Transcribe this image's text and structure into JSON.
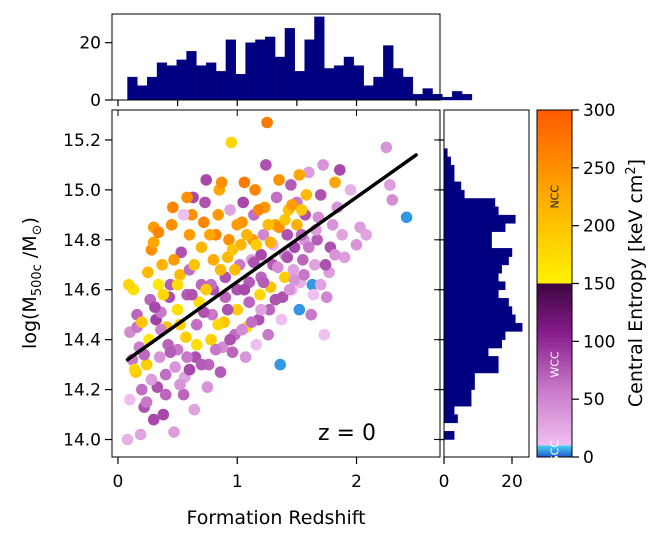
{
  "chart_data": {
    "type": "scatter",
    "title": "",
    "annotation": "z = 0",
    "main": {
      "xlabel": "Formation Redshift",
      "ylabel": "log(M",
      "ylabel_sub": "500c",
      "ylabel_mid": " /M",
      "ylabel_sub2": "⊙",
      "ylabel_end": ")",
      "xlim": [
        -0.05,
        2.7
      ],
      "ylim": [
        13.93,
        15.32
      ],
      "xticks": [
        0,
        1,
        2
      ],
      "xtick_labels": [
        "0",
        "1",
        "2"
      ],
      "yticks": [
        14.0,
        14.2,
        14.4,
        14.6,
        14.8,
        15.0,
        15.2
      ],
      "ytick_labels": [
        "14.0",
        "14.2",
        "14.4",
        "14.6",
        "14.8",
        "15.0",
        "15.2"
      ],
      "fit_line": {
        "x": [
          0.08,
          2.5
        ],
        "y": [
          14.32,
          15.14
        ],
        "color": "#000000"
      },
      "points": [
        [
          0.08,
          14.0,
          20
        ],
        [
          0.12,
          14.32,
          60
        ],
        [
          0.1,
          14.43,
          45
        ],
        [
          0.13,
          14.6,
          170
        ],
        [
          0.09,
          14.62,
          180
        ],
        [
          0.1,
          14.16,
          10
        ],
        [
          0.15,
          14.27,
          200
        ],
        [
          0.18,
          14.37,
          55
        ],
        [
          0.16,
          14.45,
          60
        ],
        [
          0.2,
          14.2,
          65
        ],
        [
          0.22,
          14.13,
          80
        ],
        [
          0.19,
          14.02,
          30
        ],
        [
          0.24,
          14.3,
          190
        ],
        [
          0.26,
          14.4,
          160
        ],
        [
          0.27,
          14.56,
          70
        ],
        [
          0.25,
          14.67,
          210
        ],
        [
          0.28,
          14.76,
          250
        ],
        [
          0.3,
          14.85,
          240
        ],
        [
          0.3,
          14.79,
          230
        ],
        [
          0.32,
          14.48,
          90
        ],
        [
          0.33,
          14.21,
          80
        ],
        [
          0.35,
          14.33,
          40
        ],
        [
          0.34,
          14.62,
          160
        ],
        [
          0.36,
          14.51,
          60
        ],
        [
          0.37,
          14.7,
          220
        ],
        [
          0.38,
          14.1,
          85
        ],
        [
          0.4,
          14.26,
          65
        ],
        [
          0.42,
          14.38,
          70
        ],
        [
          0.41,
          14.45,
          200
        ],
        [
          0.43,
          14.57,
          80
        ],
        [
          0.44,
          14.62,
          75
        ],
        [
          0.45,
          14.86,
          250
        ],
        [
          0.46,
          14.93,
          260
        ],
        [
          0.47,
          14.03,
          35
        ],
        [
          0.48,
          14.29,
          40
        ],
        [
          0.5,
          14.36,
          60
        ],
        [
          0.5,
          14.52,
          170
        ],
        [
          0.52,
          14.66,
          210
        ],
        [
          0.53,
          14.75,
          80
        ],
        [
          0.55,
          14.18,
          70
        ],
        [
          0.56,
          14.25,
          30
        ],
        [
          0.57,
          14.41,
          190
        ],
        [
          0.58,
          14.58,
          75
        ],
        [
          0.6,
          14.68,
          65
        ],
        [
          0.6,
          14.82,
          240
        ],
        [
          0.62,
          14.9,
          250
        ],
        [
          0.63,
          14.97,
          85
        ],
        [
          0.64,
          14.12,
          30
        ],
        [
          0.65,
          14.33,
          80
        ],
        [
          0.66,
          14.46,
          65
        ],
        [
          0.68,
          14.55,
          175
        ],
        [
          0.7,
          14.62,
          70
        ],
        [
          0.7,
          14.77,
          215
        ],
        [
          0.72,
          14.87,
          260
        ],
        [
          0.73,
          14.95,
          80
        ],
        [
          0.74,
          15.04,
          85
        ],
        [
          0.75,
          14.21,
          40
        ],
        [
          0.76,
          14.3,
          70
        ],
        [
          0.78,
          14.4,
          190
        ],
        [
          0.79,
          14.5,
          60
        ],
        [
          0.8,
          14.6,
          80
        ],
        [
          0.8,
          14.72,
          225
        ],
        [
          0.82,
          14.82,
          260
        ],
        [
          0.84,
          14.9,
          240
        ],
        [
          0.85,
          15.0,
          230
        ],
        [
          0.86,
          14.27,
          75
        ],
        [
          0.88,
          14.37,
          45
        ],
        [
          0.89,
          14.47,
          200
        ],
        [
          0.9,
          14.57,
          70
        ],
        [
          0.9,
          14.65,
          80
        ],
        [
          0.92,
          14.73,
          210
        ],
        [
          0.93,
          14.8,
          250
        ],
        [
          0.94,
          14.92,
          30
        ],
        [
          0.95,
          15.19,
          180
        ],
        [
          0.96,
          14.35,
          70
        ],
        [
          0.98,
          14.42,
          65
        ],
        [
          1.0,
          14.52,
          190
        ],
        [
          1.0,
          14.6,
          80
        ],
        [
          1.02,
          14.7,
          60
        ],
        [
          1.03,
          14.78,
          220
        ],
        [
          1.04,
          14.87,
          250
        ],
        [
          1.05,
          14.95,
          85
        ],
        [
          1.06,
          15.03,
          270
        ],
        [
          1.07,
          14.33,
          40
        ],
        [
          1.08,
          14.45,
          170
        ],
        [
          1.1,
          14.55,
          70
        ],
        [
          1.1,
          14.63,
          75
        ],
        [
          1.12,
          14.72,
          30
        ],
        [
          1.13,
          14.8,
          240
        ],
        [
          1.14,
          14.9,
          65
        ],
        [
          1.15,
          15.0,
          260
        ],
        [
          1.16,
          14.38,
          10
        ],
        [
          1.18,
          14.48,
          80
        ],
        [
          1.19,
          14.58,
          180
        ],
        [
          1.2,
          14.65,
          70
        ],
        [
          1.2,
          14.74,
          85
        ],
        [
          1.22,
          14.82,
          50
        ],
        [
          1.23,
          14.93,
          240
        ],
        [
          1.25,
          15.27,
          270
        ],
        [
          1.24,
          15.1,
          80
        ],
        [
          1.26,
          14.42,
          60
        ],
        [
          1.27,
          14.52,
          70
        ],
        [
          1.28,
          14.61,
          200
        ],
        [
          1.3,
          14.7,
          75
        ],
        [
          1.3,
          14.78,
          20
        ],
        [
          1.32,
          14.86,
          230
        ],
        [
          1.33,
          14.97,
          65
        ],
        [
          1.35,
          15.04,
          250
        ],
        [
          1.36,
          14.3,
          5
        ],
        [
          1.37,
          14.48,
          10
        ],
        [
          1.38,
          14.57,
          80
        ],
        [
          1.4,
          14.65,
          190
        ],
        [
          1.4,
          14.74,
          40
        ],
        [
          1.42,
          14.82,
          80
        ],
        [
          1.43,
          14.92,
          200
        ],
        [
          1.45,
          15.02,
          75
        ],
        [
          1.46,
          14.6,
          10
        ],
        [
          1.47,
          14.68,
          30
        ],
        [
          1.48,
          14.77,
          85
        ],
        [
          1.5,
          14.86,
          220
        ],
        [
          1.5,
          14.95,
          60
        ],
        [
          1.52,
          14.52,
          5
        ],
        [
          1.53,
          14.63,
          20
        ],
        [
          1.55,
          14.72,
          70
        ],
        [
          1.56,
          14.8,
          40
        ],
        [
          1.57,
          14.9,
          80
        ],
        [
          1.58,
          14.98,
          210
        ],
        [
          1.6,
          15.07,
          35
        ],
        [
          1.62,
          14.5,
          60
        ],
        [
          1.63,
          14.62,
          5
        ],
        [
          1.65,
          14.7,
          30
        ],
        [
          1.67,
          14.8,
          75
        ],
        [
          1.68,
          14.89,
          45
        ],
        [
          1.7,
          14.98,
          80
        ],
        [
          1.72,
          15.1,
          40
        ],
        [
          1.73,
          14.42,
          10
        ],
        [
          1.75,
          14.57,
          50
        ],
        [
          1.77,
          14.67,
          35
        ],
        [
          1.78,
          14.77,
          80
        ],
        [
          1.8,
          14.86,
          40
        ],
        [
          1.82,
          15.03,
          230
        ],
        [
          1.84,
          14.93,
          40
        ],
        [
          1.86,
          15.08,
          85
        ],
        [
          1.88,
          14.82,
          30
        ],
        [
          1.9,
          14.73,
          35
        ],
        [
          1.95,
          15.0,
          20
        ],
        [
          2.0,
          14.78,
          40
        ],
        [
          2.03,
          14.85,
          35
        ],
        [
          2.08,
          14.82,
          30
        ],
        [
          2.25,
          15.17,
          40
        ],
        [
          2.28,
          15.02,
          35
        ],
        [
          2.3,
          14.96,
          45
        ],
        [
          2.42,
          14.89,
          5
        ],
        [
          0.14,
          14.28,
          180
        ],
        [
          0.22,
          14.34,
          70
        ],
        [
          0.28,
          14.24,
          35
        ],
        [
          0.36,
          14.44,
          55
        ],
        [
          0.44,
          14.35,
          75
        ],
        [
          0.52,
          14.46,
          190
        ],
        [
          0.58,
          14.33,
          60
        ],
        [
          0.66,
          14.38,
          170
        ],
        [
          0.72,
          14.51,
          80
        ],
        [
          0.78,
          14.62,
          65
        ],
        [
          0.84,
          14.46,
          180
        ],
        [
          0.92,
          14.52,
          80
        ],
        [
          0.98,
          14.68,
          210
        ],
        [
          1.06,
          14.6,
          85
        ],
        [
          1.14,
          14.71,
          80
        ],
        [
          1.22,
          14.63,
          75
        ],
        [
          1.28,
          14.79,
          220
        ],
        [
          1.34,
          14.69,
          45
        ],
        [
          1.42,
          14.73,
          80
        ],
        [
          1.48,
          14.64,
          40
        ],
        [
          1.54,
          14.82,
          70
        ],
        [
          1.6,
          14.77,
          60
        ],
        [
          1.66,
          14.84,
          35
        ],
        [
          1.74,
          14.7,
          80
        ],
        [
          1.82,
          14.74,
          40
        ],
        [
          0.16,
          14.5,
          70
        ],
        [
          0.31,
          14.53,
          85
        ],
        [
          0.47,
          14.72,
          240
        ],
        [
          0.62,
          14.58,
          80
        ],
        [
          0.77,
          14.82,
          230
        ],
        [
          0.87,
          15.03,
          250
        ],
        [
          1.0,
          14.86,
          240
        ],
        [
          1.18,
          14.92,
          260
        ],
        [
          1.35,
          14.85,
          250
        ],
        [
          1.46,
          14.94,
          240
        ],
        [
          0.34,
          14.83,
          260
        ],
        [
          0.58,
          14.97,
          250
        ],
        [
          1.52,
          15.06,
          230
        ],
        [
          1.64,
          14.58,
          10
        ],
        [
          0.55,
          14.9,
          10
        ],
        [
          0.24,
          14.15,
          60
        ],
        [
          0.3,
          14.08,
          85
        ],
        [
          0.4,
          14.18,
          70
        ],
        [
          0.52,
          14.22,
          40
        ],
        [
          0.6,
          14.28,
          85
        ],
        [
          0.7,
          14.3,
          75
        ],
        [
          0.82,
          14.36,
          60
        ],
        [
          0.94,
          14.4,
          80
        ],
        [
          1.04,
          14.44,
          45
        ],
        [
          1.12,
          14.47,
          65
        ],
        [
          1.2,
          14.52,
          30
        ],
        [
          1.32,
          14.56,
          80
        ],
        [
          1.44,
          14.6,
          40
        ],
        [
          1.56,
          14.66,
          60
        ],
        [
          1.7,
          14.62,
          30
        ],
        [
          0.2,
          14.47,
          200
        ],
        [
          0.38,
          14.58,
          180
        ],
        [
          0.5,
          14.62,
          175
        ],
        [
          0.64,
          14.7,
          200
        ],
        [
          0.74,
          14.6,
          190
        ],
        [
          0.86,
          14.68,
          210
        ],
        [
          0.96,
          14.76,
          200
        ],
        [
          1.08,
          14.82,
          215
        ],
        [
          1.16,
          14.78,
          190
        ],
        [
          1.26,
          14.86,
          205
        ],
        [
          1.4,
          14.88,
          200
        ],
        [
          1.54,
          14.92,
          195
        ]
      ],
      "marginal_x": {
        "xlabel": "",
        "yticks": [
          0,
          20
        ],
        "ytick_labels": [
          "0",
          "20"
        ],
        "ylim": [
          0,
          30
        ],
        "bin_start": 0.08,
        "bin_width": 0.0825,
        "counts": [
          8,
          5,
          8,
          13,
          12,
          14,
          17,
          12,
          13,
          10,
          21,
          9,
          20,
          21,
          22,
          15,
          25,
          10,
          21,
          29,
          11,
          12,
          15,
          12,
          5,
          8,
          19,
          11,
          8,
          2,
          4,
          2,
          1,
          3,
          2
        ]
      },
      "marginal_y": {
        "xticks": [
          0,
          20
        ],
        "xtick_labels": [
          "0",
          "20"
        ],
        "xlim": [
          0,
          25
        ],
        "bin_start": 14.0,
        "bin_width": 0.0333,
        "counts": [
          3,
          0,
          4,
          3,
          8,
          8,
          9,
          9,
          16,
          16,
          13,
          17,
          18,
          23,
          21,
          20,
          19,
          16,
          18,
          16,
          17,
          19,
          20,
          14,
          14,
          18,
          21,
          16,
          15,
          6,
          5,
          3,
          3,
          2,
          1
        ]
      }
    },
    "colorbar": {
      "label": "Central Entropy [keV cm",
      "label_sup": "2",
      "label_end": "]",
      "range": [
        0,
        300
      ],
      "ticks": [
        0,
        50,
        100,
        150,
        200,
        250,
        300
      ],
      "tick_labels": [
        "0",
        "50",
        "100",
        "150",
        "200",
        "250",
        "300"
      ],
      "bands": [
        {
          "name": "SCC",
          "range": [
            0,
            10
          ],
          "text_color": "#ffffff"
        },
        {
          "name": "WCC",
          "range": [
            10,
            150
          ],
          "text_color": "#ffffff"
        },
        {
          "name": "NCC",
          "range": [
            150,
            300
          ],
          "text_color": "#222222"
        }
      ]
    }
  }
}
